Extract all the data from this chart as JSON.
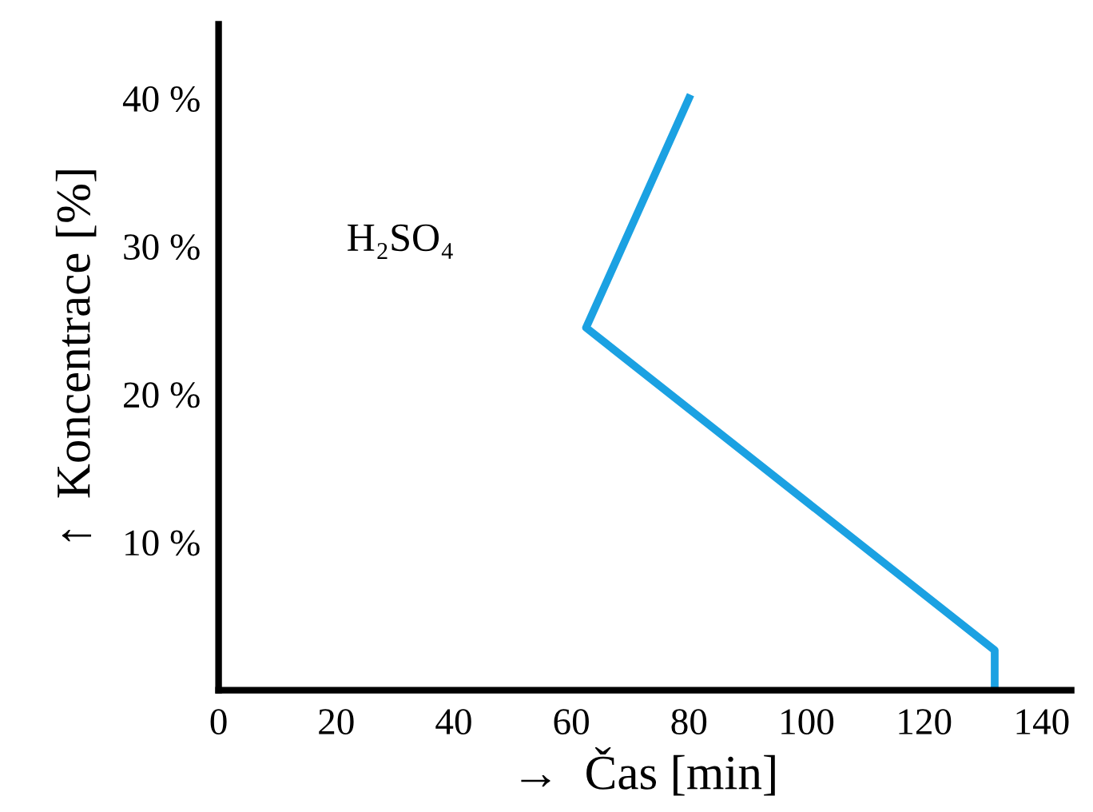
{
  "chart_data": {
    "type": "line",
    "xlabel": "→  Čas [min]",
    "ylabel": "↑  Koncentrace [%]",
    "annotations": [
      "H₂SO₄"
    ],
    "x": [
      80,
      62.5,
      132,
      132
    ],
    "series": [
      {
        "color": "#1ba1e2",
        "values": [
          40,
          24.5,
          2.7,
          0
        ]
      }
    ],
    "xlim": [
      0,
      145
    ],
    "ylim": [
      0,
      45
    ],
    "xticks": [
      0,
      20,
      40,
      60,
      80,
      100,
      120,
      140
    ],
    "yticks": [
      {
        "value": 10,
        "label": "10 %"
      },
      {
        "value": 20,
        "label": "20 %"
      },
      {
        "value": 30,
        "label": "30 %"
      },
      {
        "value": 40,
        "label": "40 %"
      }
    ],
    "grid": false,
    "legend": false
  }
}
